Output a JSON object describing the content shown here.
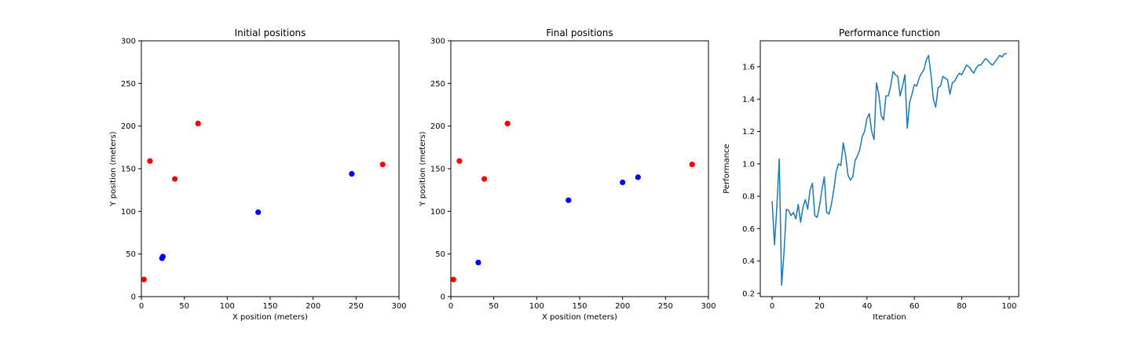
{
  "chart_data": [
    {
      "type": "scatter",
      "title": "Initial positions",
      "xlabel": "X position (meters)",
      "ylabel": "Y position (meters)",
      "xlim": [
        0,
        300
      ],
      "ylim": [
        0,
        300
      ],
      "xticks": [
        0,
        50,
        100,
        150,
        200,
        250,
        300
      ],
      "yticks": [
        0,
        50,
        100,
        150,
        200,
        250,
        300
      ],
      "grid": false,
      "series": [
        {
          "color": "#ff0000",
          "points": [
            [
              3,
              20
            ],
            [
              10,
              159
            ],
            [
              39,
              138
            ],
            [
              66,
              203
            ],
            [
              281,
              155
            ]
          ]
        },
        {
          "color": "#0000ff",
          "points": [
            [
              24,
              45
            ],
            [
              25,
              47
            ],
            [
              136,
              99
            ],
            [
              245,
              144
            ]
          ]
        }
      ]
    },
    {
      "type": "scatter",
      "title": "Final positions",
      "xlabel": "X position (meters)",
      "ylabel": "Y position (meters)",
      "xlim": [
        0,
        300
      ],
      "ylim": [
        0,
        300
      ],
      "xticks": [
        0,
        50,
        100,
        150,
        200,
        250,
        300
      ],
      "yticks": [
        0,
        50,
        100,
        150,
        200,
        250,
        300
      ],
      "grid": false,
      "series": [
        {
          "color": "#ff0000",
          "points": [
            [
              3,
              20
            ],
            [
              10,
              159
            ],
            [
              39,
              138
            ],
            [
              66,
              203
            ],
            [
              281,
              155
            ]
          ]
        },
        {
          "color": "#0000ff",
          "points": [
            [
              32,
              40
            ],
            [
              137,
              113
            ],
            [
              200,
              134
            ],
            [
              218,
              140
            ]
          ]
        }
      ]
    },
    {
      "type": "line",
      "title": "Performance function",
      "xlabel": "Iteration",
      "ylabel": "Performance",
      "xlim": [
        -5,
        104
      ],
      "ylim": [
        0.18,
        1.76
      ],
      "xticks": [
        0,
        20,
        40,
        60,
        80,
        100
      ],
      "yticks": [
        0.2,
        0.4,
        0.6,
        0.8,
        1.0,
        1.2,
        1.4,
        1.6
      ],
      "ytick_labels": [
        "0.2",
        "0.4",
        "0.6",
        "0.8",
        "1.0",
        "1.2",
        "1.4",
        "1.6"
      ],
      "grid": false,
      "series": [
        {
          "color": "#1f77b4",
          "x": [
            0,
            1,
            2,
            3,
            4,
            5,
            6,
            7,
            8,
            9,
            10,
            11,
            12,
            13,
            14,
            15,
            16,
            17,
            18,
            19,
            20,
            21,
            22,
            23,
            24,
            25,
            26,
            27,
            28,
            29,
            30,
            31,
            32,
            33,
            34,
            35,
            36,
            37,
            38,
            39,
            40,
            41,
            42,
            43,
            44,
            45,
            46,
            47,
            48,
            49,
            50,
            51,
            52,
            53,
            54,
            55,
            56,
            57,
            58,
            59,
            60,
            61,
            62,
            63,
            64,
            65,
            66,
            67,
            68,
            69,
            70,
            71,
            72,
            73,
            74,
            75,
            76,
            77,
            78,
            79,
            80,
            81,
            82,
            83,
            84,
            85,
            86,
            87,
            88,
            89,
            90,
            91,
            92,
            93,
            94,
            95,
            96,
            97,
            98,
            99
          ],
          "values": [
            0.77,
            0.5,
            0.74,
            1.03,
            0.25,
            0.45,
            0.72,
            0.71,
            0.68,
            0.7,
            0.66,
            0.75,
            0.64,
            0.73,
            0.78,
            0.72,
            0.84,
            0.88,
            0.68,
            0.67,
            0.74,
            0.84,
            0.92,
            0.7,
            0.69,
            0.75,
            0.84,
            0.95,
            1.0,
            0.99,
            1.13,
            1.05,
            0.93,
            0.9,
            0.92,
            1.02,
            1.05,
            1.09,
            1.17,
            1.2,
            1.28,
            1.31,
            1.2,
            1.15,
            1.5,
            1.43,
            1.3,
            1.27,
            1.42,
            1.42,
            1.48,
            1.57,
            1.55,
            1.54,
            1.42,
            1.48,
            1.55,
            1.22,
            1.38,
            1.43,
            1.49,
            1.48,
            1.53,
            1.56,
            1.58,
            1.64,
            1.67,
            1.55,
            1.4,
            1.35,
            1.47,
            1.48,
            1.54,
            1.53,
            1.52,
            1.43,
            1.5,
            1.51,
            1.54,
            1.56,
            1.55,
            1.58,
            1.61,
            1.6,
            1.58,
            1.56,
            1.59,
            1.61,
            1.61,
            1.63,
            1.65,
            1.64,
            1.62,
            1.61,
            1.63,
            1.65,
            1.67,
            1.66,
            1.68,
            1.68
          ]
        }
      ]
    }
  ]
}
